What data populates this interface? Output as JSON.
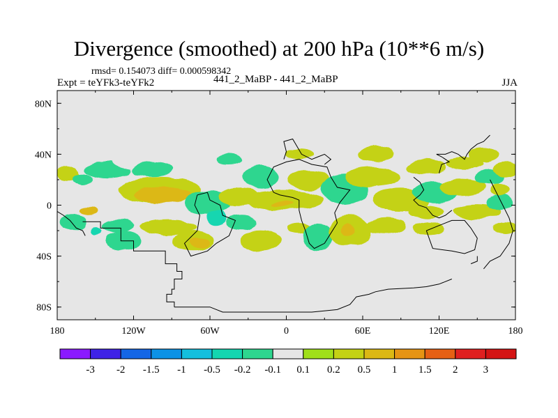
{
  "figure": {
    "title": "Divergence (smoothed) at 200 hPa (10**6 m/s)",
    "stats_line": "rmsd= 0.154073 diff= 0.000598342",
    "experiment": "Expt = teYFk3-teYFk2",
    "cases": "441_2_MaBP - 441_2_MaBP",
    "season": "JJA"
  },
  "chart_data": {
    "type": "contour_map",
    "title": "Divergence (smoothed) at 200 hPa (10**6 m/s)",
    "variable": "Divergence difference (smoothed), 200 hPa",
    "units": "10**6 m/s",
    "projection": "cylindrical equidistant",
    "lon_range": [
      -180,
      180
    ],
    "lat_range": [
      -90,
      90
    ],
    "x_ticks": [
      {
        "value": -180,
        "label": "180"
      },
      {
        "value": -120,
        "label": "120W"
      },
      {
        "value": -60,
        "label": "60W"
      },
      {
        "value": 0,
        "label": "0"
      },
      {
        "value": 60,
        "label": "60E"
      },
      {
        "value": 120,
        "label": "120E"
      },
      {
        "value": 180,
        "label": "180"
      }
    ],
    "y_ticks": [
      {
        "value": 80,
        "label": "80N"
      },
      {
        "value": 40,
        "label": "40N"
      },
      {
        "value": 0,
        "label": "0"
      },
      {
        "value": -40,
        "label": "40S"
      },
      {
        "value": -80,
        "label": "80S"
      }
    ],
    "colorbar": {
      "labels": [
        "-3",
        "-2",
        "-1.5",
        "-1",
        "-0.5",
        "-0.2",
        "-0.1",
        "0.1",
        "0.2",
        "0.5",
        "1",
        "1.5",
        "2",
        "3"
      ],
      "colors": [
        "#8b1aff",
        "#3f22e6",
        "#1466e6",
        "#0c92e6",
        "#14bfdd",
        "#14d6b0",
        "#2ed68f",
        "#e6e6e6",
        "#a0e01a",
        "#c4d214",
        "#dcb814",
        "#e69414",
        "#e66014",
        "#e02020",
        "#d41414"
      ]
    },
    "missing_color": "#e6e6e6",
    "fields": [
      {
        "lon": -172,
        "lat": 25,
        "rx": 9,
        "ry": 6,
        "level": 0.2
      },
      {
        "lon": -160,
        "lat": 20,
        "rx": 8,
        "ry": 5,
        "level": -0.2
      },
      {
        "lon": -155,
        "lat": -5,
        "rx": 7,
        "ry": 3,
        "level": 0.5
      },
      {
        "lon": -168,
        "lat": -13,
        "rx": 10,
        "ry": 6,
        "level": -0.2
      },
      {
        "lon": -150,
        "lat": -20,
        "rx": 5,
        "ry": 3,
        "level": -0.5
      },
      {
        "lon": -140,
        "lat": 28,
        "rx": 18,
        "ry": 7,
        "level": -0.2
      },
      {
        "lon": -132,
        "lat": -16,
        "rx": 13,
        "ry": 5,
        "level": -0.2
      },
      {
        "lon": -128,
        "lat": -28,
        "rx": 14,
        "ry": 8,
        "level": -0.2
      },
      {
        "lon": -123,
        "lat": 35,
        "rx": 13,
        "ry": 6,
        "level": -0.1
      },
      {
        "lon": -100,
        "lat": 12,
        "rx": 32,
        "ry": 10,
        "level": 0.2
      },
      {
        "lon": -98,
        "lat": 8,
        "rx": 22,
        "ry": 6,
        "level": 0.5
      },
      {
        "lon": -105,
        "lat": 28,
        "rx": 16,
        "ry": 6,
        "level": -0.2
      },
      {
        "lon": -93,
        "lat": -17,
        "rx": 22,
        "ry": 6,
        "level": 0.2
      },
      {
        "lon": -73,
        "lat": -28,
        "rx": 16,
        "ry": 8,
        "level": 0.2
      },
      {
        "lon": -68,
        "lat": -30,
        "rx": 8,
        "ry": 4,
        "level": 0.5
      },
      {
        "lon": -62,
        "lat": 2,
        "rx": 18,
        "ry": 9,
        "level": -0.2
      },
      {
        "lon": -55,
        "lat": -10,
        "rx": 8,
        "ry": 6,
        "level": -0.5
      },
      {
        "lon": -45,
        "lat": 36,
        "rx": 10,
        "ry": 4,
        "level": -0.2
      },
      {
        "lon": -37,
        "lat": 6,
        "rx": 16,
        "ry": 7,
        "level": 0.2
      },
      {
        "lon": -35,
        "lat": -13,
        "rx": 12,
        "ry": 6,
        "level": -0.2
      },
      {
        "lon": -20,
        "lat": 22,
        "rx": 14,
        "ry": 9,
        "level": -0.2
      },
      {
        "lon": -3,
        "lat": 4,
        "rx": 32,
        "ry": 8,
        "level": 0.2
      },
      {
        "lon": -3,
        "lat": 1,
        "rx": 8,
        "ry": 2,
        "level": 0.5
      },
      {
        "lon": -20,
        "lat": -28,
        "rx": 16,
        "ry": 9,
        "level": 0.2
      },
      {
        "lon": 10,
        "lat": 40,
        "rx": 12,
        "ry": 4,
        "level": 0.2
      },
      {
        "lon": 18,
        "lat": 20,
        "rx": 16,
        "ry": 8,
        "level": 0.2
      },
      {
        "lon": 10,
        "lat": -18,
        "rx": 10,
        "ry": 4,
        "level": 0.2
      },
      {
        "lon": 25,
        "lat": -25,
        "rx": 12,
        "ry": 10,
        "level": -0.2
      },
      {
        "lon": 46,
        "lat": 12,
        "rx": 18,
        "ry": 12,
        "level": -0.2
      },
      {
        "lon": 68,
        "lat": 22,
        "rx": 22,
        "ry": 8,
        "level": 0.2
      },
      {
        "lon": 50,
        "lat": -20,
        "rx": 16,
        "ry": 12,
        "level": 0.2
      },
      {
        "lon": 48,
        "lat": -20,
        "rx": 6,
        "ry": 5,
        "level": 0.5
      },
      {
        "lon": 90,
        "lat": 4,
        "rx": 22,
        "ry": 9,
        "level": 0.2
      },
      {
        "lon": 78,
        "lat": -16,
        "rx": 16,
        "ry": 6,
        "level": 0.2
      },
      {
        "lon": 70,
        "lat": 40,
        "rx": 14,
        "ry": 6,
        "level": 0.2
      },
      {
        "lon": 110,
        "lat": 30,
        "rx": 16,
        "ry": 6,
        "level": 0.2
      },
      {
        "lon": 117,
        "lat": 10,
        "rx": 18,
        "ry": 8,
        "level": -0.2
      },
      {
        "lon": 110,
        "lat": -5,
        "rx": 14,
        "ry": 5,
        "level": 0.2
      },
      {
        "lon": 112,
        "lat": -18,
        "rx": 12,
        "ry": 5,
        "level": 0.2
      },
      {
        "lon": 140,
        "lat": 33,
        "rx": 14,
        "ry": 5,
        "level": 0.2
      },
      {
        "lon": 138,
        "lat": 14,
        "rx": 18,
        "ry": 7,
        "level": 0.2
      },
      {
        "lon": 150,
        "lat": -5,
        "rx": 18,
        "ry": 6,
        "level": 0.2
      },
      {
        "lon": 155,
        "lat": 40,
        "rx": 12,
        "ry": 6,
        "level": 0.2
      },
      {
        "lon": 160,
        "lat": 22,
        "rx": 12,
        "ry": 6,
        "level": -0.2
      },
      {
        "lon": 167,
        "lat": 2,
        "rx": 10,
        "ry": 6,
        "level": -0.2
      },
      {
        "lon": 168,
        "lat": 12,
        "rx": 8,
        "ry": 5,
        "level": 0.2
      },
      {
        "lon": 172,
        "lat": -18,
        "rx": 10,
        "ry": 5,
        "level": 0.2
      },
      {
        "lon": 172,
        "lat": 28,
        "rx": 10,
        "ry": 6,
        "level": 0.2
      }
    ],
    "coastlines": [
      [
        [
          -160,
          -13
        ],
        [
          -146,
          -13
        ],
        [
          -146,
          -18
        ],
        [
          -130,
          -18
        ],
        [
          -130,
          -28
        ],
        [
          -120,
          -28
        ],
        [
          -120,
          -36
        ],
        [
          -95,
          -36
        ],
        [
          -95,
          -46
        ],
        [
          -86,
          -46
        ],
        [
          -86,
          -52
        ],
        [
          -82,
          -52
        ],
        [
          -82,
          -58
        ],
        [
          -88,
          -58
        ],
        [
          -88,
          -66
        ],
        [
          -90,
          -66
        ],
        [
          -90,
          -70
        ],
        [
          -94,
          -70
        ],
        [
          -94,
          -76
        ],
        [
          -88,
          -76
        ],
        [
          -88,
          -80
        ]
      ],
      [
        [
          -88,
          -80
        ],
        [
          -60,
          -80
        ],
        [
          -50,
          -84
        ],
        [
          -10,
          -84
        ],
        [
          20,
          -84
        ],
        [
          40,
          -82
        ],
        [
          50,
          -78
        ],
        [
          55,
          -72
        ],
        [
          65,
          -70
        ],
        [
          70,
          -68
        ],
        [
          80,
          -66
        ],
        [
          100,
          -65
        ],
        [
          110,
          -64
        ],
        [
          120,
          -62
        ],
        [
          130,
          -58
        ]
      ],
      [
        [
          -70,
          8
        ],
        [
          -62,
          10
        ],
        [
          -60,
          4
        ],
        [
          -52,
          0
        ],
        [
          -50,
          -8
        ],
        [
          -40,
          -12
        ],
        [
          -45,
          -24
        ],
        [
          -55,
          -30
        ],
        [
          -62,
          -36
        ],
        [
          -75,
          -40
        ],
        [
          -80,
          -30
        ],
        [
          -70,
          -20
        ],
        [
          -68,
          -8
        ],
        [
          -72,
          0
        ],
        [
          -70,
          8
        ]
      ],
      [
        [
          -10,
          10
        ],
        [
          -5,
          8
        ],
        [
          5,
          6
        ],
        [
          10,
          4
        ],
        [
          10,
          -4
        ],
        [
          12,
          -12
        ],
        [
          15,
          -20
        ],
        [
          18,
          -30
        ],
        [
          22,
          -34
        ],
        [
          30,
          -30
        ],
        [
          35,
          -22
        ],
        [
          40,
          -14
        ],
        [
          38,
          -6
        ],
        [
          42,
          2
        ],
        [
          50,
          12
        ],
        [
          40,
          14
        ],
        [
          35,
          22
        ],
        [
          32,
          30
        ],
        [
          20,
          32
        ],
        [
          10,
          36
        ],
        [
          0,
          34
        ],
        [
          -10,
          30
        ],
        [
          -15,
          20
        ],
        [
          -10,
          10
        ]
      ],
      [
        [
          -2,
          36
        ],
        [
          0,
          42
        ],
        [
          -2,
          50
        ],
        [
          5,
          52
        ],
        [
          12,
          40
        ],
        [
          20,
          36
        ],
        [
          25,
          38
        ],
        [
          30,
          40
        ],
        [
          35,
          36
        ],
        [
          30,
          32
        ]
      ],
      [
        [
          110,
          -20
        ],
        [
          115,
          -34
        ],
        [
          130,
          -36
        ],
        [
          140,
          -38
        ],
        [
          148,
          -35
        ],
        [
          150,
          -26
        ],
        [
          145,
          -18
        ],
        [
          140,
          -12
        ],
        [
          130,
          -12
        ],
        [
          120,
          -16
        ],
        [
          110,
          -20
        ]
      ],
      [
        [
          120,
          25
        ],
        [
          122,
          32
        ],
        [
          128,
          34
        ],
        [
          122,
          38
        ],
        [
          118,
          40
        ],
        [
          125,
          40
        ],
        [
          130,
          42
        ],
        [
          135,
          40
        ],
        [
          140,
          36
        ],
        [
          142,
          40
        ],
        [
          145,
          44
        ],
        [
          150,
          48
        ],
        [
          155,
          50
        ],
        [
          160,
          55
        ]
      ],
      [
        [
          100,
          22
        ],
        [
          105,
          18
        ],
        [
          108,
          12
        ],
        [
          105,
          8
        ],
        [
          100,
          4
        ],
        [
          104,
          0
        ],
        [
          110,
          -2
        ],
        [
          115,
          -8
        ],
        [
          120,
          -10
        ],
        [
          125,
          -8
        ],
        [
          130,
          -4
        ]
      ],
      [
        [
          145,
          -46
        ],
        [
          150,
          -44
        ],
        [
          150,
          -40
        ]
      ],
      [
        [
          160,
          20
        ],
        [
          165,
          10
        ],
        [
          170,
          0
        ],
        [
          175,
          -10
        ],
        [
          178,
          -20
        ],
        [
          175,
          -30
        ],
        [
          168,
          -40
        ],
        [
          160,
          -44
        ],
        [
          155,
          -50
        ]
      ],
      [
        [
          -180,
          -5
        ],
        [
          -175,
          -8
        ],
        [
          -170,
          -12
        ],
        [
          -165,
          -18
        ],
        [
          -160,
          -20
        ],
        [
          -158,
          -24
        ]
      ]
    ]
  }
}
